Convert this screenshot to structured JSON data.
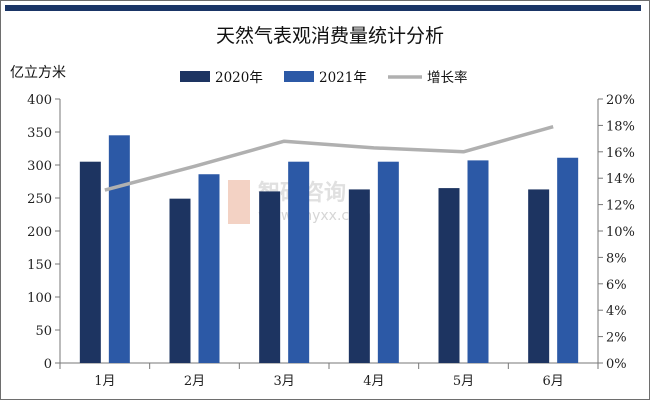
{
  "chart_data": {
    "type": "bar",
    "title": "天然气表观消费量统计分析",
    "ylabel": "亿立方米",
    "categories": [
      "1月",
      "2月",
      "3月",
      "4月",
      "5月",
      "6月"
    ],
    "series": [
      {
        "name": "2020年",
        "type": "bar",
        "axis": "left",
        "values": [
          305,
          249,
          260,
          263,
          265,
          263
        ],
        "color": "#1d3461"
      },
      {
        "name": "2021年",
        "type": "bar",
        "axis": "left",
        "values": [
          345,
          286,
          305,
          305,
          307,
          311
        ],
        "color": "#2c59a6"
      },
      {
        "name": "增长率",
        "type": "line",
        "axis": "right",
        "values": [
          13.1,
          14.9,
          16.8,
          16.3,
          16.0,
          17.9
        ],
        "color": "#b0b0b0"
      }
    ],
    "ylim": [
      0,
      400
    ],
    "yticks": [
      "0",
      "50",
      "100",
      "150",
      "200",
      "250",
      "300",
      "350",
      "400"
    ],
    "y2lim": [
      0,
      20
    ],
    "y2ticks": [
      "0%",
      "2%",
      "4%",
      "6%",
      "8%",
      "10%",
      "12%",
      "14%",
      "16%",
      "18%",
      "20%"
    ],
    "legend_position": "top",
    "grid": false
  },
  "watermark": {
    "line1": "智研咨询",
    "line2": "www.chyxx.com"
  }
}
